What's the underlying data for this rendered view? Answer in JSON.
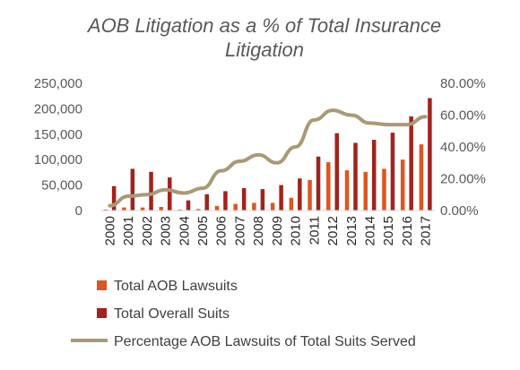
{
  "chart_data": {
    "type": "bar",
    "title": [
      "AOB Litigation as a % of Total Insurance",
      "Litigation"
    ],
    "categories": [
      "2000",
      "2001",
      "2002",
      "2003",
      "2004",
      "2005",
      "2006",
      "2007",
      "2008",
      "2009",
      "2010",
      "2011",
      "2012",
      "2013",
      "2014",
      "2015",
      "2016",
      "2017"
    ],
    "series": [
      {
        "name": "Total AOB Lawsuits",
        "type": "bar",
        "axis": "left",
        "color": "#e0541f",
        "values": [
          2000,
          6000,
          6000,
          7000,
          2000,
          3000,
          9000,
          13000,
          15000,
          15000,
          25000,
          60000,
          95000,
          79000,
          76000,
          82000,
          100000,
          130000
        ]
      },
      {
        "name": "Total Overall Suits",
        "type": "bar",
        "axis": "left",
        "color": "#a3221c",
        "values": [
          48000,
          82000,
          76000,
          65000,
          20000,
          32000,
          38000,
          44000,
          42000,
          50000,
          63000,
          106000,
          152000,
          133000,
          139000,
          153000,
          185000,
          221000
        ]
      },
      {
        "name": "Percentage AOB Lawsuits of Total Suits Served",
        "type": "line",
        "axis": "right",
        "color": "#a99a74",
        "values": [
          0.03,
          0.09,
          0.1,
          0.13,
          0.11,
          0.14,
          0.25,
          0.31,
          0.35,
          0.3,
          0.4,
          0.57,
          0.63,
          0.6,
          0.55,
          0.54,
          0.54,
          0.59
        ]
      }
    ],
    "y_left": {
      "min": 0,
      "max": 250000,
      "ticks": [
        "0",
        "50,000",
        "100,000",
        "150,000",
        "200,000",
        "250,000"
      ]
    },
    "y_right": {
      "min": 0,
      "max": 0.8,
      "ticks": [
        "0.00%",
        "20.00%",
        "40.00%",
        "60.00%",
        "80.00%"
      ]
    },
    "grid": false,
    "legend_position": "bottom-left"
  }
}
